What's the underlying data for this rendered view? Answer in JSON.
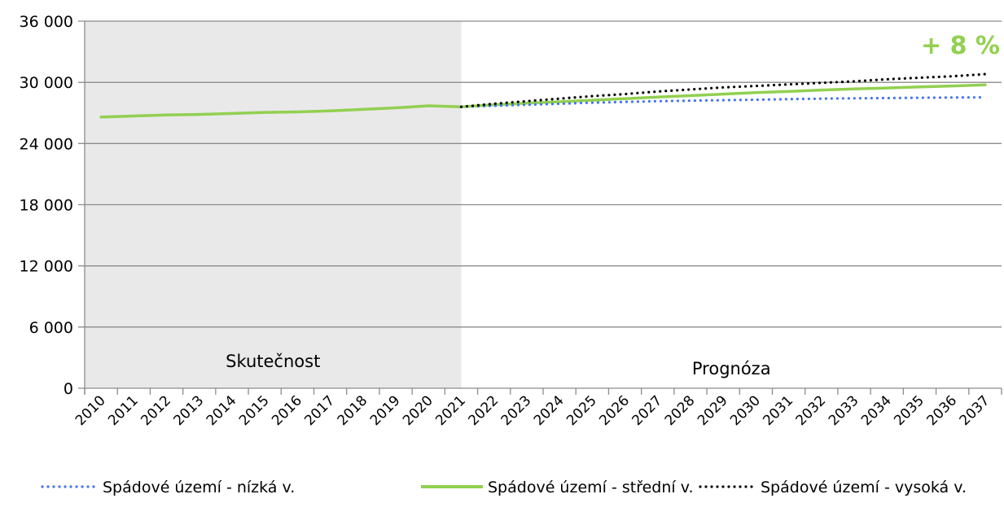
{
  "chart_data": {
    "type": "line",
    "x": [
      "2010",
      "2011",
      "2012",
      "2013",
      "2014",
      "2015",
      "2016",
      "2017",
      "2018",
      "2019",
      "2020",
      "2021",
      "2022",
      "2023",
      "2024",
      "2025",
      "2026",
      "2027",
      "2028",
      "2029",
      "2030",
      "2031",
      "2032",
      "2033",
      "2034",
      "2035",
      "2036",
      "2037"
    ],
    "ylim": [
      0,
      36000
    ],
    "yticks": [
      0,
      6000,
      12000,
      18000,
      24000,
      30000,
      36000
    ],
    "ytick_labels": [
      "0",
      "6 000",
      "12 000",
      "18 000",
      "24 000",
      "30 000",
      "36 000"
    ],
    "grid": "horizontal",
    "legend_position": "bottom",
    "regions": [
      {
        "label": "Skutečnost",
        "from": "2010",
        "to": "2021",
        "color": "#e9e9e9"
      },
      {
        "label": "Prognóza",
        "from": "2021",
        "to": "2037",
        "color": "#ffffff"
      }
    ],
    "annotation": {
      "text": "+ 8 %",
      "color": "#92d050"
    },
    "series": [
      {
        "name": "Spádové území - nízká v.",
        "style": "dotted",
        "color": "#4472f4",
        "x": [
          "2021",
          "2022",
          "2023",
          "2024",
          "2025",
          "2026",
          "2027",
          "2028",
          "2029",
          "2030",
          "2031",
          "2032",
          "2033",
          "2034",
          "2035",
          "2036",
          "2037"
        ],
        "values": [
          27600,
          27700,
          27800,
          27900,
          28000,
          28080,
          28150,
          28200,
          28250,
          28300,
          28350,
          28400,
          28430,
          28460,
          28490,
          28510,
          28530
        ]
      },
      {
        "name": "Spádové území - střední v.",
        "style": "solid",
        "color": "#92d050",
        "x": [
          "2010",
          "2011",
          "2012",
          "2013",
          "2014",
          "2015",
          "2016",
          "2017",
          "2018",
          "2019",
          "2020",
          "2021",
          "2022",
          "2023",
          "2024",
          "2025",
          "2026",
          "2027",
          "2028",
          "2029",
          "2030",
          "2031",
          "2032",
          "2033",
          "2034",
          "2035",
          "2036",
          "2037"
        ],
        "values": [
          26600,
          26700,
          26800,
          26850,
          26950,
          27050,
          27100,
          27200,
          27350,
          27500,
          27700,
          27600,
          27800,
          27950,
          28100,
          28250,
          28400,
          28550,
          28700,
          28850,
          29000,
          29100,
          29250,
          29350,
          29450,
          29550,
          29650,
          29750
        ]
      },
      {
        "name": "Spádové území - vysoká v.",
        "style": "dotted",
        "color": "#000000",
        "x": [
          "2021",
          "2022",
          "2023",
          "2024",
          "2025",
          "2026",
          "2027",
          "2028",
          "2029",
          "2030",
          "2031",
          "2032",
          "2033",
          "2034",
          "2035",
          "2036",
          "2037"
        ],
        "values": [
          27600,
          27900,
          28150,
          28400,
          28650,
          28850,
          29100,
          29300,
          29500,
          29650,
          29800,
          29950,
          30100,
          30300,
          30450,
          30600,
          30800
        ]
      }
    ]
  }
}
